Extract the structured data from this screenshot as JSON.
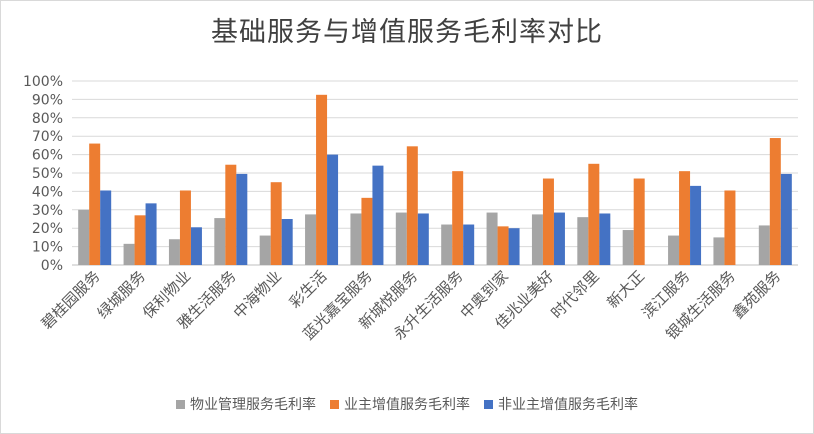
{
  "chart_data": {
    "type": "bar",
    "title": "基础服务与增值服务毛利率对比",
    "categories": [
      "碧桂园服务",
      "绿城服务",
      "保利物业",
      "雅生活服务",
      "中海物业",
      "彩生活",
      "蓝光嘉宝服务",
      "新城悦服务",
      "永升生活服务",
      "中奥到家",
      "佳兆业美好",
      "时代邻里",
      "新大正",
      "滨江服务",
      "银城生活服务",
      "鑫苑服务"
    ],
    "series": [
      {
        "name": "物业管理服务毛利率",
        "color": "#a5a5a5",
        "values": [
          30,
          11.5,
          14,
          25.5,
          16,
          27.5,
          28,
          28.5,
          22,
          28.5,
          27.5,
          26,
          19,
          16,
          15,
          21.5
        ]
      },
      {
        "name": "业主增值服务毛利率",
        "color": "#ed7d31",
        "values": [
          66,
          27,
          40.5,
          54.5,
          45,
          92.5,
          36.5,
          64.5,
          51,
          21,
          47,
          55,
          47,
          51,
          40.5,
          69
        ]
      },
      {
        "name": "非业主增值服务毛利率",
        "color": "#4472c4",
        "values": [
          40.5,
          33.5,
          20.5,
          49.5,
          25,
          60,
          54,
          28,
          22,
          20,
          28.5,
          28,
          null,
          43,
          null,
          49.5
        ]
      }
    ],
    "yticks": [
      "0%",
      "10%",
      "20%",
      "30%",
      "40%",
      "50%",
      "60%",
      "70%",
      "80%",
      "90%",
      "100%"
    ],
    "ylim": [
      0,
      100
    ],
    "grid": true,
    "legend": "bottom"
  }
}
